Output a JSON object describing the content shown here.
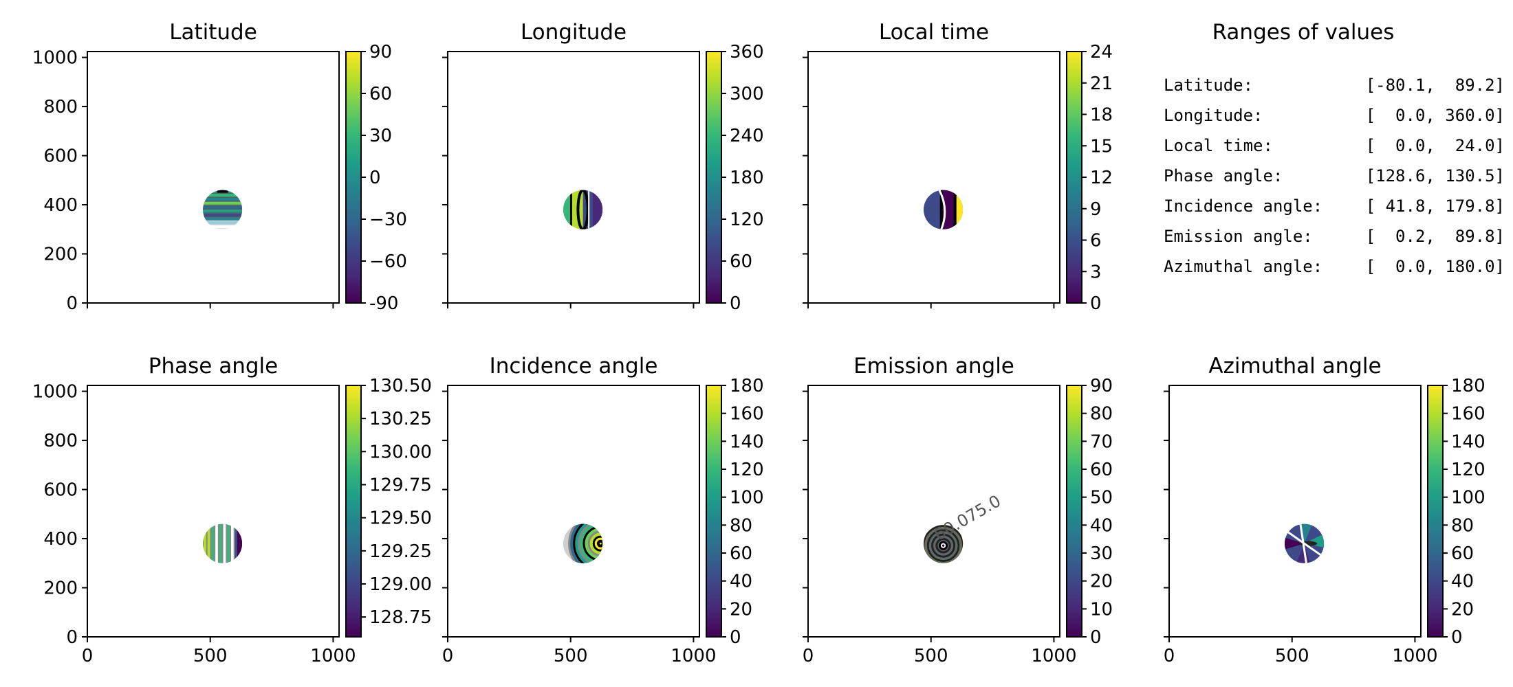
{
  "chart_data": [
    {
      "type": "heatmap",
      "title": "Latitude",
      "xlim": [
        0,
        1024
      ],
      "ylim": [
        0,
        1024
      ],
      "xticks": [
        0,
        500,
        1000
      ],
      "yticks": [
        0,
        200,
        400,
        600,
        800,
        1000
      ],
      "show_xticklabels": false,
      "show_yticklabels": true,
      "colorbar": {
        "min": -90,
        "max": 90,
        "ticks": [
          "-90",
          "−60",
          "−30",
          "0",
          "30",
          "60",
          "90"
        ],
        "tick_values": [
          -90,
          -60,
          -30,
          0,
          30,
          60,
          90
        ]
      },
      "disk": {
        "cx": 550,
        "cy": 380,
        "r": 80
      },
      "pattern": "h-stripes"
    },
    {
      "type": "heatmap",
      "title": "Longitude",
      "xlim": [
        0,
        1024
      ],
      "ylim": [
        0,
        1024
      ],
      "xticks": [
        0,
        500,
        1000
      ],
      "yticks": [
        0,
        200,
        400,
        600,
        800,
        1000
      ],
      "show_xticklabels": false,
      "show_yticklabels": false,
      "colorbar": {
        "min": 0,
        "max": 360,
        "ticks": [
          "0",
          "60",
          "120",
          "180",
          "240",
          "300",
          "360"
        ],
        "tick_values": [
          0,
          60,
          120,
          180,
          240,
          300,
          360
        ]
      },
      "disk": {
        "cx": 550,
        "cy": 380,
        "r": 80
      },
      "pattern": "halves"
    },
    {
      "type": "heatmap",
      "title": "Local time",
      "xlim": [
        0,
        1024
      ],
      "ylim": [
        0,
        1024
      ],
      "xticks": [
        0,
        500,
        1000
      ],
      "yticks": [
        0,
        200,
        400,
        600,
        800,
        1000
      ],
      "show_xticklabels": false,
      "show_yticklabels": false,
      "colorbar": {
        "min": 0,
        "max": 24,
        "ticks": [
          "0",
          "3",
          "6",
          "9",
          "12",
          "15",
          "18",
          "21",
          "24"
        ],
        "tick_values": [
          0,
          3,
          6,
          9,
          12,
          15,
          18,
          21,
          24
        ]
      },
      "disk": {
        "cx": 550,
        "cy": 380,
        "r": 80
      },
      "pattern": "localtime"
    },
    {
      "type": "heatmap",
      "title": "Phase angle",
      "xlim": [
        0,
        1024
      ],
      "ylim": [
        0,
        1024
      ],
      "xticks": [
        0,
        500,
        1000
      ],
      "yticks": [
        0,
        200,
        400,
        600,
        800,
        1000
      ],
      "show_xticklabels": true,
      "show_yticklabels": true,
      "colorbar": {
        "min": 128.6,
        "max": 130.5,
        "ticks": [
          "128.75",
          "129.00",
          "129.25",
          "129.50",
          "129.75",
          "130.00",
          "130.25",
          "130.50"
        ],
        "tick_values": [
          128.75,
          129.0,
          129.25,
          129.5,
          129.75,
          130.0,
          130.25,
          130.5
        ]
      },
      "disk": {
        "cx": 550,
        "cy": 380,
        "r": 80
      },
      "pattern": "v-stripes"
    },
    {
      "type": "heatmap",
      "title": "Incidence angle",
      "xlim": [
        0,
        1024
      ],
      "ylim": [
        0,
        1024
      ],
      "xticks": [
        0,
        500,
        1000
      ],
      "yticks": [
        0,
        200,
        400,
        600,
        800,
        1000
      ],
      "show_xticklabels": true,
      "show_yticklabels": false,
      "colorbar": {
        "min": 0,
        "max": 180,
        "ticks": [
          "0",
          "20",
          "40",
          "60",
          "80",
          "100",
          "120",
          "140",
          "160",
          "180"
        ],
        "tick_values": [
          0,
          20,
          40,
          60,
          80,
          100,
          120,
          140,
          160,
          180
        ]
      },
      "disk": {
        "cx": 550,
        "cy": 380,
        "r": 80
      },
      "pattern": "incidence"
    },
    {
      "type": "heatmap",
      "title": "Emission angle",
      "xlim": [
        0,
        1024
      ],
      "ylim": [
        0,
        1024
      ],
      "xticks": [
        0,
        500,
        1000
      ],
      "yticks": [
        0,
        200,
        400,
        600,
        800,
        1000
      ],
      "show_xticklabels": true,
      "show_yticklabels": false,
      "colorbar": {
        "min": 0,
        "max": 90,
        "ticks": [
          "0",
          "10",
          "20",
          "30",
          "40",
          "50",
          "60",
          "70",
          "80",
          "90"
        ],
        "tick_values": [
          0,
          10,
          20,
          30,
          40,
          50,
          60,
          70,
          80,
          90
        ]
      },
      "disk": {
        "cx": 550,
        "cy": 380,
        "r": 80
      },
      "pattern": "rings",
      "contour_label": "60.075.0"
    },
    {
      "type": "heatmap",
      "title": "Azimuthal angle",
      "xlim": [
        0,
        1024
      ],
      "ylim": [
        0,
        1024
      ],
      "xticks": [
        0,
        500,
        1000
      ],
      "yticks": [
        0,
        200,
        400,
        600,
        800,
        1000
      ],
      "show_xticklabels": true,
      "show_yticklabels": false,
      "colorbar": {
        "min": 0,
        "max": 180,
        "ticks": [
          "0",
          "20",
          "40",
          "60",
          "80",
          "100",
          "120",
          "140",
          "160",
          "180"
        ],
        "tick_values": [
          0,
          20,
          40,
          60,
          80,
          100,
          120,
          140,
          160,
          180
        ]
      },
      "disk": {
        "cx": 550,
        "cy": 380,
        "r": 80
      },
      "pattern": "azimuth"
    }
  ],
  "ranges_panel": {
    "title": "Ranges of values",
    "rows": [
      {
        "label": "Latitude:",
        "value": "[-80.1,  89.2]"
      },
      {
        "label": "Longitude:",
        "value": "[  0.0, 360.0]"
      },
      {
        "label": "Local time:",
        "value": "[  0.0,  24.0]"
      },
      {
        "label": "Phase angle:",
        "value": "[128.6, 130.5]"
      },
      {
        "label": "Incidence angle:",
        "value": "[ 41.8, 179.8]"
      },
      {
        "label": "Emission angle:",
        "value": "[  0.2,  89.8]"
      },
      {
        "label": "Azimuthal angle:",
        "value": "[  0.0, 180.0]"
      }
    ]
  }
}
